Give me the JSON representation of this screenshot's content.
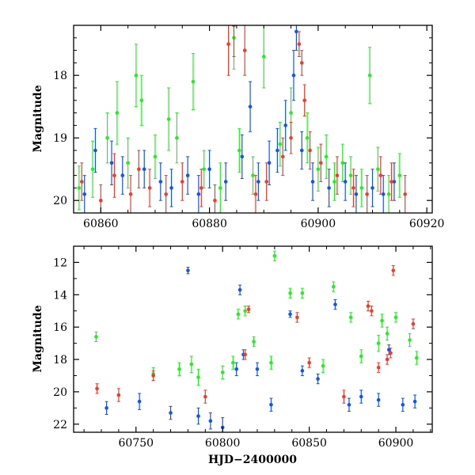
{
  "figure": {
    "xlabel_bottom": "HJD−2400000"
  },
  "chart_data": [
    {
      "type": "scatter",
      "ylabel": "Magnitude",
      "xlim": [
        60855,
        60921
      ],
      "ylim": [
        20.2,
        17.2
      ],
      "y_inverted": true,
      "xticks": [
        60860,
        60880,
        60900,
        60920
      ],
      "yticks": [
        18,
        19,
        20
      ],
      "grid": false,
      "errorbars": true,
      "series": [
        {
          "color": "#22ee22",
          "points": [
            [
              60856.0,
              19.8,
              0.35
            ],
            [
              60858.5,
              19.5,
              0.45
            ],
            [
              60861.2,
              19.0,
              0.4
            ],
            [
              60863.0,
              18.6,
              0.5
            ],
            [
              60865.0,
              19.4,
              0.4
            ],
            [
              60866.5,
              18.0,
              0.5
            ],
            [
              60867.5,
              18.4,
              0.4
            ],
            [
              60870.0,
              19.3,
              0.35
            ],
            [
              60872.5,
              18.7,
              0.5
            ],
            [
              60874.0,
              19.0,
              0.4
            ],
            [
              60877.0,
              18.1,
              0.45
            ],
            [
              60879.0,
              19.5,
              0.3
            ],
            [
              60882.0,
              19.8,
              0.4
            ],
            [
              60884.5,
              17.4,
              0.5
            ],
            [
              60885.5,
              19.2,
              0.35
            ],
            [
              60888.0,
              19.6,
              0.3
            ],
            [
              60890.0,
              17.7,
              0.5
            ],
            [
              60893.0,
              19.1,
              0.35
            ],
            [
              60895.0,
              18.6,
              0.4
            ],
            [
              60898.0,
              19.0,
              0.4
            ],
            [
              60900.0,
              19.5,
              0.35
            ],
            [
              60901.5,
              19.3,
              0.35
            ],
            [
              60903.0,
              19.7,
              0.3
            ],
            [
              60904.5,
              19.4,
              0.3
            ],
            [
              60906.0,
              19.6,
              0.3
            ],
            [
              60908.0,
              19.8,
              0.3
            ],
            [
              60909.5,
              18.0,
              0.45
            ],
            [
              60911.0,
              19.5,
              0.35
            ],
            [
              60913.0,
              19.9,
              0.3
            ],
            [
              60915.0,
              19.6,
              0.35
            ]
          ]
        },
        {
          "color": "#1155ee",
          "points": [
            [
              60857.0,
              19.9,
              0.3
            ],
            [
              60859.0,
              19.2,
              0.35
            ],
            [
              60862.0,
              19.4,
              0.35
            ],
            [
              60864.0,
              19.6,
              0.3
            ],
            [
              60868.0,
              19.5,
              0.3
            ],
            [
              60871.0,
              19.7,
              0.3
            ],
            [
              60873.0,
              19.8,
              0.3
            ],
            [
              60876.0,
              19.6,
              0.3
            ],
            [
              60878.0,
              19.9,
              0.3
            ],
            [
              60880.0,
              19.5,
              0.3
            ],
            [
              60883.0,
              19.7,
              0.3
            ],
            [
              60886.0,
              19.3,
              0.35
            ],
            [
              60887.5,
              18.5,
              0.4
            ],
            [
              60889.0,
              19.7,
              0.3
            ],
            [
              60891.0,
              19.4,
              0.35
            ],
            [
              60892.5,
              19.2,
              0.35
            ],
            [
              60894.0,
              18.8,
              0.4
            ],
            [
              60895.5,
              18.0,
              0.4
            ],
            [
              60896.0,
              17.3,
              0.3
            ],
            [
              60897.0,
              19.2,
              0.3
            ],
            [
              60899.0,
              19.7,
              0.3
            ],
            [
              60902.0,
              19.8,
              0.3
            ],
            [
              60905.0,
              19.7,
              0.3
            ],
            [
              60907.0,
              19.9,
              0.3
            ],
            [
              60910.0,
              19.8,
              0.3
            ],
            [
              60912.0,
              19.9,
              0.3
            ],
            [
              60914.0,
              19.7,
              0.3
            ]
          ]
        },
        {
          "color": "#f03a2a",
          "points": [
            [
              60856.5,
              19.7,
              0.3
            ],
            [
              60860.0,
              20.0,
              0.25
            ],
            [
              60862.5,
              19.6,
              0.35
            ],
            [
              60865.5,
              19.9,
              0.3
            ],
            [
              60867.0,
              19.5,
              0.3
            ],
            [
              60869.0,
              19.8,
              0.3
            ],
            [
              60872.0,
              19.9,
              0.3
            ],
            [
              60875.0,
              19.7,
              0.3
            ],
            [
              60878.5,
              19.8,
              0.3
            ],
            [
              60881.0,
              20.0,
              0.25
            ],
            [
              60883.5,
              17.5,
              0.5
            ],
            [
              60884.5,
              17.2,
              0.5
            ],
            [
              60886.5,
              17.6,
              0.4
            ],
            [
              60888.5,
              19.9,
              0.3
            ],
            [
              60890.5,
              19.7,
              0.3
            ],
            [
              60893.5,
              19.3,
              0.3
            ],
            [
              60895.0,
              19.0,
              0.25
            ],
            [
              60896.5,
              17.5,
              0.2
            ],
            [
              60897.0,
              17.8,
              0.2
            ],
            [
              60897.5,
              18.4,
              0.25
            ],
            [
              60898.5,
              19.2,
              0.3
            ],
            [
              60900.5,
              19.4,
              0.3
            ],
            [
              60903.5,
              19.6,
              0.3
            ],
            [
              60906.5,
              19.8,
              0.3
            ],
            [
              60909.0,
              19.9,
              0.3
            ],
            [
              60911.5,
              19.6,
              0.3
            ],
            [
              60913.5,
              19.7,
              0.3
            ],
            [
              60916.0,
              19.9,
              0.3
            ]
          ]
        }
      ]
    },
    {
      "type": "scatter",
      "xlabel": "HJD−2400000",
      "ylabel": "Magnitude",
      "xlim": [
        60714,
        60921
      ],
      "ylim": [
        22.5,
        11
      ],
      "y_inverted": true,
      "xticks": [
        60750,
        60800,
        60850,
        60900
      ],
      "yticks": [
        12,
        14,
        16,
        18,
        20,
        22
      ],
      "grid": false,
      "errorbars": true,
      "series": [
        {
          "color": "#22ee22",
          "points": [
            [
              60727.0,
              16.6,
              0.3
            ],
            [
              60760.0,
              18.9,
              0.4
            ],
            [
              60775.0,
              18.6,
              0.4
            ],
            [
              60782.0,
              18.3,
              0.5
            ],
            [
              60786.0,
              19.1,
              0.5
            ],
            [
              60800.0,
              18.8,
              0.4
            ],
            [
              60806.0,
              18.2,
              0.4
            ],
            [
              60809.0,
              15.2,
              0.3
            ],
            [
              60813.0,
              15.0,
              0.3
            ],
            [
              60818.0,
              16.9,
              0.3
            ],
            [
              60828.0,
              18.2,
              0.4
            ],
            [
              60830.0,
              11.6,
              0.3
            ],
            [
              60839.0,
              13.9,
              0.3
            ],
            [
              60846.0,
              13.9,
              0.3
            ],
            [
              60858.0,
              18.4,
              0.4
            ],
            [
              60864.0,
              13.5,
              0.3
            ],
            [
              60874.0,
              15.4,
              0.3
            ],
            [
              60880.0,
              17.8,
              0.4
            ],
            [
              60890.0,
              17.0,
              0.5
            ],
            [
              60892.0,
              15.6,
              0.4
            ],
            [
              60895.0,
              16.4,
              0.4
            ],
            [
              60900.0,
              15.4,
              0.3
            ],
            [
              60908.0,
              16.8,
              0.4
            ],
            [
              60912.0,
              17.9,
              0.4
            ]
          ]
        },
        {
          "color": "#1155ee",
          "points": [
            [
              60733.0,
              21.0,
              0.4
            ],
            [
              60752.0,
              20.6,
              0.5
            ],
            [
              60770.0,
              21.3,
              0.4
            ],
            [
              60780.0,
              12.5,
              0.2
            ],
            [
              60786.0,
              21.5,
              0.5
            ],
            [
              60793.0,
              21.8,
              0.5
            ],
            [
              60800.0,
              22.2,
              0.6
            ],
            [
              60808.0,
              18.6,
              0.4
            ],
            [
              60810.0,
              13.7,
              0.3
            ],
            [
              60812.0,
              17.7,
              0.3
            ],
            [
              60820.0,
              18.6,
              0.4
            ],
            [
              60828.0,
              20.8,
              0.4
            ],
            [
              60839.0,
              15.2,
              0.2
            ],
            [
              60846.0,
              18.7,
              0.3
            ],
            [
              60855.0,
              19.2,
              0.3
            ],
            [
              60865.0,
              14.6,
              0.3
            ],
            [
              60873.0,
              20.8,
              0.4
            ],
            [
              60880.0,
              20.3,
              0.4
            ],
            [
              60890.0,
              20.5,
              0.4
            ],
            [
              60896.0,
              17.4,
              0.3
            ],
            [
              60904.0,
              20.8,
              0.4
            ],
            [
              60911.0,
              20.6,
              0.4
            ]
          ]
        },
        {
          "color": "#f03a2a",
          "points": [
            [
              60727.5,
              19.8,
              0.3
            ],
            [
              60740.0,
              20.2,
              0.4
            ],
            [
              60760.0,
              19.0,
              0.3
            ],
            [
              60790.0,
              20.3,
              0.4
            ],
            [
              60813.0,
              17.7,
              0.3
            ],
            [
              60815.0,
              14.9,
              0.2
            ],
            [
              60843.0,
              15.4,
              0.3
            ],
            [
              60850.0,
              18.2,
              0.3
            ],
            [
              60870.0,
              20.3,
              0.4
            ],
            [
              60884.0,
              14.7,
              0.3
            ],
            [
              60886.0,
              15.0,
              0.3
            ],
            [
              60890.0,
              18.5,
              0.3
            ],
            [
              60895.0,
              18.0,
              0.3
            ],
            [
              60897.0,
              17.6,
              0.3
            ],
            [
              60898.5,
              12.5,
              0.3
            ],
            [
              60910.0,
              15.8,
              0.3
            ]
          ]
        }
      ]
    }
  ]
}
